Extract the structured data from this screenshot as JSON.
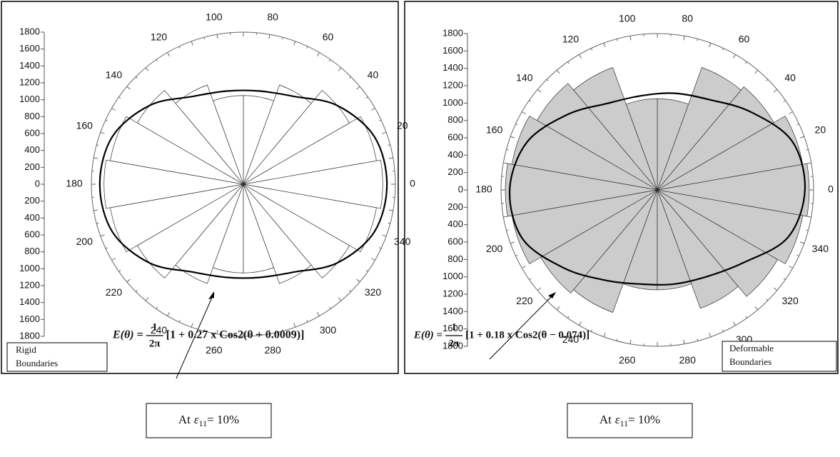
{
  "chart_data": [
    {
      "type": "rose",
      "categories": [
        0,
        20,
        40,
        60,
        80,
        100,
        120,
        140,
        160,
        180,
        200,
        220,
        240,
        260,
        280,
        300,
        320,
        340
      ],
      "values": [
        1650,
        1600,
        1450,
        1250,
        1050,
        1050,
        1250,
        1450,
        1600,
        1650,
        1600,
        1450,
        1250,
        1050,
        1050,
        1250,
        1450,
        1600
      ],
      "fit": [
        1700,
        1650,
        1450,
        1200,
        1120,
        1120,
        1200,
        1450,
        1650,
        1700,
        1650,
        1450,
        1200,
        1120,
        1120,
        1200,
        1450,
        1650
      ],
      "color": "#ffffff",
      "rlim": [
        0,
        1800
      ],
      "rticks": [
        0,
        200,
        400,
        600,
        800,
        1000,
        1200,
        1400,
        1600,
        1800
      ],
      "label": [
        "Rigid",
        "Boundaries"
      ],
      "formula": {
        "lhs": "E(θ) =",
        "num": "1",
        "den": "2π",
        "rhs": "[1 + 0.27 x Cos2(θ + 0.0009)]"
      },
      "caption": {
        "prefix": "At",
        "symbol": "ε",
        "subscript": "11",
        "suffix": "= 10%"
      }
    },
    {
      "type": "rose",
      "categories": [
        0,
        20,
        40,
        60,
        80,
        100,
        120,
        140,
        160,
        180,
        200,
        220,
        240,
        260,
        280,
        300,
        320,
        340
      ],
      "values": [
        1750,
        1700,
        1550,
        1500,
        1050,
        1050,
        1500,
        1600,
        1700,
        1750,
        1700,
        1550,
        1500,
        1150,
        1150,
        1450,
        1600,
        1700
      ],
      "fit": [
        1700,
        1650,
        1400,
        1200,
        1130,
        1100,
        1150,
        1350,
        1600,
        1700,
        1650,
        1400,
        1200,
        1100,
        1100,
        1150,
        1300,
        1600
      ],
      "color": "#cccccc",
      "rlim": [
        0,
        1800
      ],
      "rticks": [
        0,
        200,
        400,
        600,
        800,
        1000,
        1200,
        1400,
        1600,
        1800
      ],
      "label": [
        "Deformable",
        "Boundaries"
      ],
      "formula": {
        "lhs": "E(θ) =",
        "num": "1",
        "den": "2π",
        "rhs": "[1 + 0.18 x Cos2(θ − 0.074)]"
      },
      "caption": {
        "prefix": "At",
        "symbol": "ε",
        "subscript": "11",
        "suffix": "= 10%"
      }
    }
  ]
}
